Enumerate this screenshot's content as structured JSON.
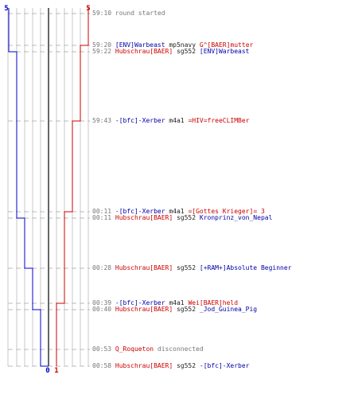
{
  "chart_data": {
    "type": "step-line",
    "title": "",
    "colors": {
      "blue_team": "#0000cc",
      "red_team": "#cc0000",
      "center_line": "#666666",
      "grid": "#c8c8c8",
      "guides": "#bbbbbb"
    },
    "top_scores": {
      "blue": "5",
      "red": "5"
    },
    "bottom_scores": {
      "blue": "0",
      "red": "1"
    },
    "events": [
      {
        "time": "59:10",
        "blue": 5,
        "red": 5,
        "parts": [
          {
            "c": "g",
            "t": "round started"
          }
        ]
      },
      {
        "time": "59:20",
        "blue": 5,
        "red": 4,
        "parts": [
          {
            "c": "b",
            "t": "[ENV]Warbeast"
          },
          {
            "c": "k",
            "t": " mp5navy "
          },
          {
            "c": "r",
            "t": "G^[BAER]mutter"
          }
        ]
      },
      {
        "time": "59:22",
        "blue": 4,
        "red": 4,
        "parts": [
          {
            "c": "r",
            "t": "Hubschrau[BAER]"
          },
          {
            "c": "k",
            "t": " sg552 "
          },
          {
            "c": "b",
            "t": "[ENV]Warbeast"
          }
        ]
      },
      {
        "time": "59:43",
        "blue": 4,
        "red": 3,
        "parts": [
          {
            "c": "b",
            "t": "-[bfc]-Xerber"
          },
          {
            "c": "k",
            "t": " m4a1 "
          },
          {
            "c": "r",
            "t": "=HIV=freeCLIMBer"
          }
        ]
      },
      {
        "time": "00:11",
        "blue": 4,
        "red": 2,
        "parts": [
          {
            "c": "b",
            "t": "-[bfc]-Xerber"
          },
          {
            "c": "k",
            "t": " m4a1 "
          },
          {
            "c": "r",
            "t": "=[Gottes Krieger]= 3"
          }
        ]
      },
      {
        "time": "00:11",
        "blue": 3,
        "red": 2,
        "parts": [
          {
            "c": "r",
            "t": "Hubschrau[BAER]"
          },
          {
            "c": "k",
            "t": " sg552 "
          },
          {
            "c": "b",
            "t": "Kronprinz_von_Nepal"
          }
        ]
      },
      {
        "time": "00:28",
        "blue": 2,
        "red": 2,
        "parts": [
          {
            "c": "r",
            "t": "Hubschrau[BAER]"
          },
          {
            "c": "k",
            "t": " sg552 "
          },
          {
            "c": "b",
            "t": "[+RAM+]Absolute Beginner"
          }
        ]
      },
      {
        "time": "00:39",
        "blue": 2,
        "red": 1,
        "parts": [
          {
            "c": "b",
            "t": "-[bfc]-Xerber"
          },
          {
            "c": "k",
            "t": " m4a1 "
          },
          {
            "c": "r",
            "t": "Wei[BAER]held"
          }
        ]
      },
      {
        "time": "00:40",
        "blue": 1,
        "red": 1,
        "parts": [
          {
            "c": "r",
            "t": "Hubschrau[BAER]"
          },
          {
            "c": "k",
            "t": " sg552 "
          },
          {
            "c": "b",
            "t": "_Jod_Guinea_Pig"
          }
        ]
      },
      {
        "time": "00:53",
        "blue": 1,
        "red": 1,
        "parts": [
          {
            "c": "r",
            "t": "Q_Roqueton"
          },
          {
            "c": "g",
            "t": " disconnected"
          }
        ]
      },
      {
        "time": "00:58",
        "blue": 0,
        "red": 1,
        "parts": [
          {
            "c": "r",
            "t": "Hubschrau[BAER]"
          },
          {
            "c": "k",
            "t": " sg552 "
          },
          {
            "c": "b",
            "t": "-[bfc]-Xerber"
          }
        ]
      }
    ]
  }
}
